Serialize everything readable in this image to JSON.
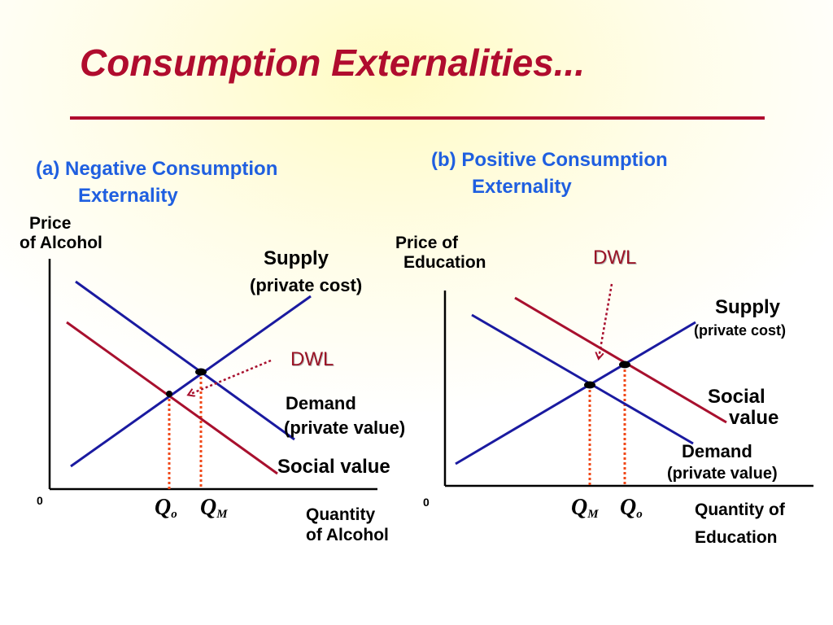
{
  "title": "Consumption Externalities...",
  "panel_a": {
    "title_line1": "(a) Negative Consumption",
    "title_line2": "Externality",
    "y_axis_label_line1": "Price",
    "y_axis_label_line2": "of Alcohol",
    "x_axis_label_line1": "Quantity",
    "x_axis_label_line2": "of Alcohol",
    "origin": "0",
    "supply_label": "Supply",
    "supply_sub": "(private cost)",
    "dwl_label": "DWL",
    "demand_label": "Demand",
    "demand_sub": "(private value)",
    "social_label": "Social value",
    "q1_main": "Q",
    "q1_sub": "o",
    "q2_main": "Q",
    "q2_sub": "M"
  },
  "panel_b": {
    "title_line1": "(b) Positive Consumption",
    "title_line2": "Externality",
    "y_axis_label_line1": "Price of",
    "y_axis_label_line2": "Education",
    "x_axis_label_line1": "Quantity of",
    "x_axis_label_line2": "Education",
    "origin": "0",
    "dwl_label": "DWL",
    "supply_label": "Supply",
    "supply_sub": "(private cost)",
    "social_label_line1": "Social",
    "social_label_line2": "value",
    "demand_label": "Demand",
    "demand_sub": "(private value)",
    "q1_main": "Q",
    "q1_sub": "M",
    "q2_main": "Q",
    "q2_sub": "o"
  },
  "colors": {
    "title": "#b00c2e",
    "panel_title": "#1f5fe0",
    "supply_demand_line": "#1a1aa0",
    "social_value_line": "#a8102e",
    "guide_line": "#f04818"
  }
}
